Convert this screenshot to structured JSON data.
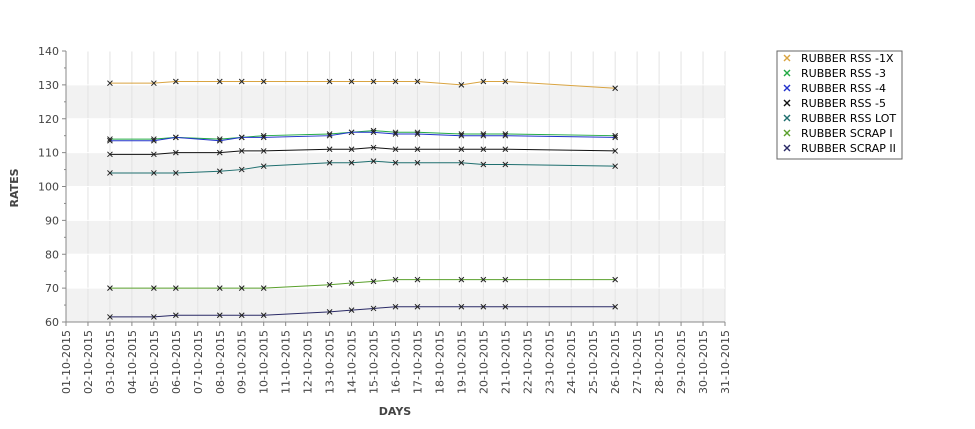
{
  "chart_data": {
    "type": "line",
    "xlabel": "DAYS",
    "ylabel": "RATES",
    "ylim": [
      60,
      140
    ],
    "yticks": [
      60,
      70,
      80,
      90,
      100,
      110,
      120,
      130,
      140
    ],
    "grid": true,
    "alternating_bands": true,
    "legend_position": "right",
    "x_dates": [
      "01-10-2015",
      "02-10-2015",
      "03-10-2015",
      "04-10-2015",
      "05-10-2015",
      "06-10-2015",
      "07-10-2015",
      "08-10-2015",
      "09-10-2015",
      "10-10-2015",
      "11-10-2015",
      "12-10-2015",
      "13-10-2015",
      "14-10-2015",
      "15-10-2015",
      "16-10-2015",
      "17-10-2015",
      "18-10-2015",
      "19-10-2015",
      "20-10-2015",
      "21-10-2015",
      "22-10-2015",
      "23-10-2015",
      "24-10-2015",
      "25-10-2015",
      "26-10-2015",
      "27-10-2015",
      "28-10-2015",
      "29-10-2015",
      "30-10-2015",
      "31-10-2015"
    ],
    "series": [
      {
        "name": "RUBBER RSS -1X",
        "color": "#d9a441",
        "x": [
          "03-10-2015",
          "05-10-2015",
          "06-10-2015",
          "08-10-2015",
          "09-10-2015",
          "10-10-2015",
          "13-10-2015",
          "14-10-2015",
          "15-10-2015",
          "16-10-2015",
          "17-10-2015",
          "19-10-2015",
          "20-10-2015",
          "21-10-2015",
          "26-10-2015"
        ],
        "values": [
          130.5,
          130.5,
          131,
          131,
          131,
          131,
          131,
          131,
          131,
          131,
          131,
          130,
          131,
          131,
          129
        ]
      },
      {
        "name": "RUBBER RSS -3",
        "color": "#22aa44",
        "x": [
          "03-10-2015",
          "05-10-2015",
          "06-10-2015",
          "08-10-2015",
          "09-10-2015",
          "10-10-2015",
          "13-10-2015",
          "14-10-2015",
          "15-10-2015",
          "16-10-2015",
          "17-10-2015",
          "19-10-2015",
          "20-10-2015",
          "21-10-2015",
          "26-10-2015"
        ],
        "values": [
          114,
          114,
          114.5,
          114,
          114.5,
          115,
          115.5,
          116,
          116.5,
          116,
          116,
          115.5,
          115.5,
          115.5,
          115
        ]
      },
      {
        "name": "RUBBER RSS -4",
        "color": "#2233cc",
        "x": [
          "03-10-2015",
          "05-10-2015",
          "06-10-2015",
          "08-10-2015",
          "09-10-2015",
          "10-10-2015",
          "13-10-2015",
          "14-10-2015",
          "15-10-2015",
          "16-10-2015",
          "17-10-2015",
          "19-10-2015",
          "20-10-2015",
          "21-10-2015",
          "26-10-2015"
        ],
        "values": [
          113.5,
          113.5,
          114.5,
          113.5,
          114.5,
          114.5,
          115,
          116,
          116,
          115.5,
          115.5,
          115,
          115,
          115,
          114.5
        ]
      },
      {
        "name": "RUBBER RSS -5",
        "color": "#111111",
        "x": [
          "03-10-2015",
          "05-10-2015",
          "06-10-2015",
          "08-10-2015",
          "09-10-2015",
          "10-10-2015",
          "13-10-2015",
          "14-10-2015",
          "15-10-2015",
          "16-10-2015",
          "17-10-2015",
          "19-10-2015",
          "20-10-2015",
          "21-10-2015",
          "26-10-2015"
        ],
        "values": [
          109.5,
          109.5,
          110,
          110,
          110.5,
          110.5,
          111,
          111,
          111.5,
          111,
          111,
          111,
          111,
          111,
          110.5
        ]
      },
      {
        "name": "RUBBER RSS LOT",
        "color": "#1f6f6f",
        "x": [
          "03-10-2015",
          "05-10-2015",
          "06-10-2015",
          "08-10-2015",
          "09-10-2015",
          "10-10-2015",
          "13-10-2015",
          "14-10-2015",
          "15-10-2015",
          "16-10-2015",
          "17-10-2015",
          "19-10-2015",
          "20-10-2015",
          "21-10-2015",
          "26-10-2015"
        ],
        "values": [
          104,
          104,
          104,
          104.5,
          105,
          106,
          107,
          107,
          107.5,
          107,
          107,
          107,
          106.5,
          106.5,
          106
        ]
      },
      {
        "name": "RUBBER SCRAP I",
        "color": "#5aa02c",
        "x": [
          "03-10-2015",
          "05-10-2015",
          "06-10-2015",
          "08-10-2015",
          "09-10-2015",
          "10-10-2015",
          "13-10-2015",
          "14-10-2015",
          "15-10-2015",
          "16-10-2015",
          "17-10-2015",
          "19-10-2015",
          "20-10-2015",
          "21-10-2015",
          "26-10-2015"
        ],
        "values": [
          70,
          70,
          70,
          70,
          70,
          70,
          71,
          71.5,
          72,
          72.5,
          72.5,
          72.5,
          72.5,
          72.5,
          72.5
        ]
      },
      {
        "name": "RUBBER SCRAP II",
        "color": "#2a2a66",
        "x": [
          "03-10-2015",
          "05-10-2015",
          "06-10-2015",
          "08-10-2015",
          "09-10-2015",
          "10-10-2015",
          "13-10-2015",
          "14-10-2015",
          "15-10-2015",
          "16-10-2015",
          "17-10-2015",
          "19-10-2015",
          "20-10-2015",
          "21-10-2015",
          "26-10-2015"
        ],
        "values": [
          61.5,
          61.5,
          62,
          62,
          62,
          62,
          63,
          63.5,
          64,
          64.5,
          64.5,
          64.5,
          64.5,
          64.5,
          64.5
        ]
      }
    ]
  }
}
